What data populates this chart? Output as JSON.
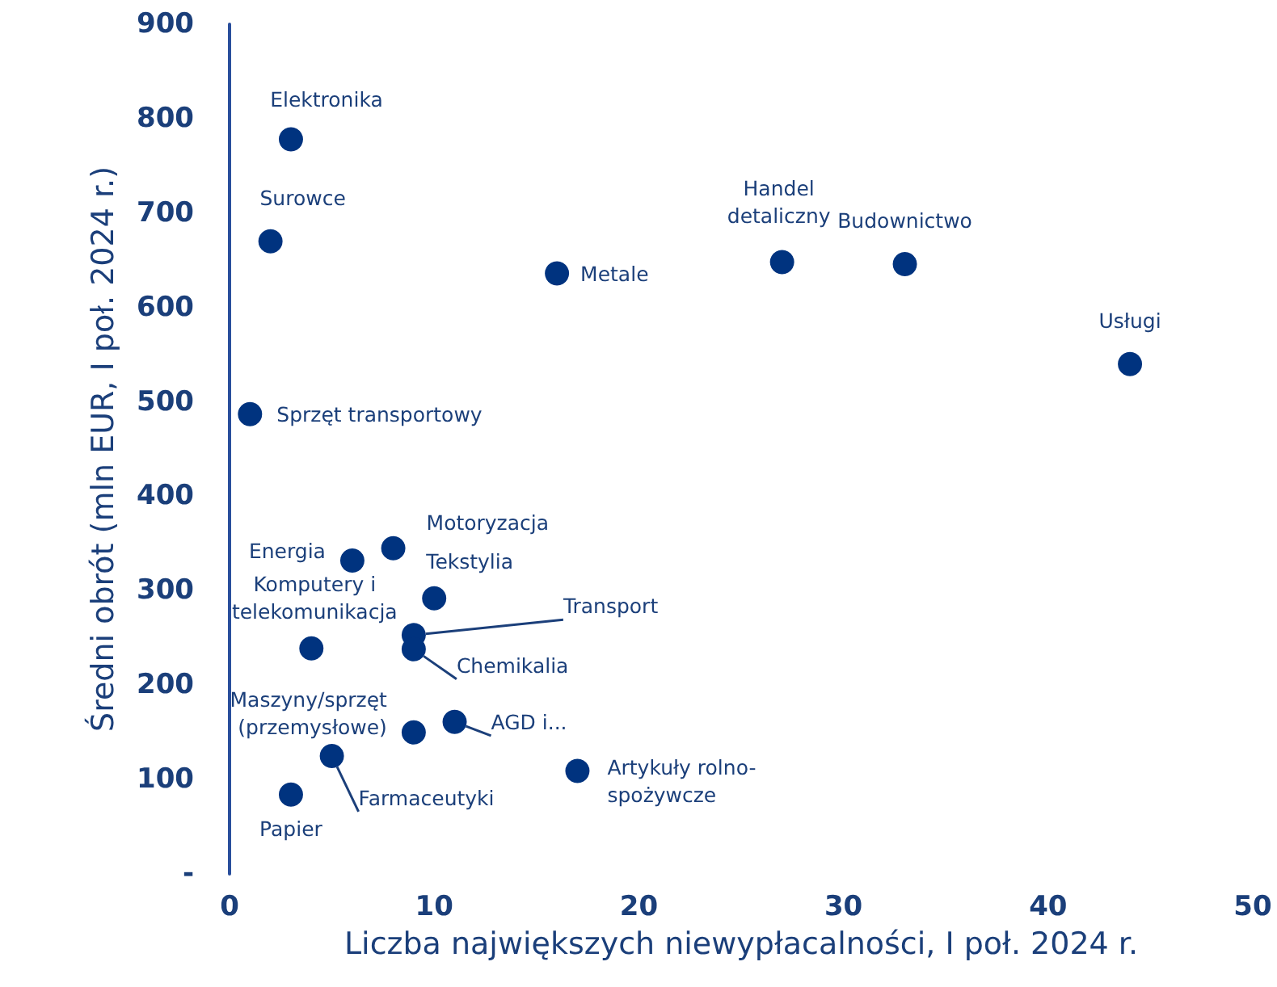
{
  "chart_data": {
    "type": "scatter",
    "xlabel": "Liczba największych niewypłacalności, I poł. 2024 r.",
    "ylabel": "Średni obrót (mln EUR, I poł. 2024 r.)",
    "xlim": [
      0,
      50
    ],
    "xticks": [
      0,
      10,
      20,
      30,
      40,
      50
    ],
    "ylim": [
      0,
      900
    ],
    "yticks": [
      {
        "value": 0,
        "label": "-"
      },
      100,
      200,
      300,
      400,
      500,
      600,
      700,
      800,
      900
    ],
    "marker": "circle",
    "series": [
      {
        "color": "#00337f",
        "x": [
          3,
          2,
          16,
          27,
          33,
          44,
          1,
          8,
          6,
          10,
          9,
          9,
          4,
          11,
          9,
          17,
          5,
          3
        ],
        "values": [
          778,
          670,
          636,
          648,
          646,
          540,
          487,
          345,
          332,
          292,
          253,
          238,
          239,
          161,
          150,
          109,
          125,
          84
        ]
      }
    ],
    "annotations": [
      {
        "text": "Elektronika",
        "x": 3,
        "y": 778
      },
      {
        "text": "Surowce",
        "x": 2,
        "y": 670
      },
      {
        "text": "Metale",
        "x": 16,
        "y": 636
      },
      {
        "text": "Handel detaliczny",
        "x": 27,
        "y": 648
      },
      {
        "text": "Budownictwo",
        "x": 33,
        "y": 646
      },
      {
        "text": "Usługi",
        "x": 44,
        "y": 540
      },
      {
        "text": "Sprzęt transportowy",
        "x": 1,
        "y": 487
      },
      {
        "text": "Motoryzacja",
        "x": 8,
        "y": 345
      },
      {
        "text": "Energia",
        "x": 6,
        "y": 332
      },
      {
        "text": "Tekstylia",
        "x": 10,
        "y": 292
      },
      {
        "text": "Transport",
        "x": 9,
        "y": 253
      },
      {
        "text": "Chemikalia",
        "x": 9,
        "y": 238
      },
      {
        "text": "Komputery i telekomunikacja",
        "x": 4,
        "y": 239
      },
      {
        "text": "AGD i...",
        "x": 11,
        "y": 161
      },
      {
        "text": "Maszyny/sprzęt (przemysłowe)",
        "x": 9,
        "y": 150
      },
      {
        "text": "Artykuły rolno-spożywcze",
        "x": 17,
        "y": 109
      },
      {
        "text": "Farmaceutyki",
        "x": 5,
        "y": 125
      },
      {
        "text": "Papier",
        "x": 3,
        "y": 84
      }
    ]
  }
}
